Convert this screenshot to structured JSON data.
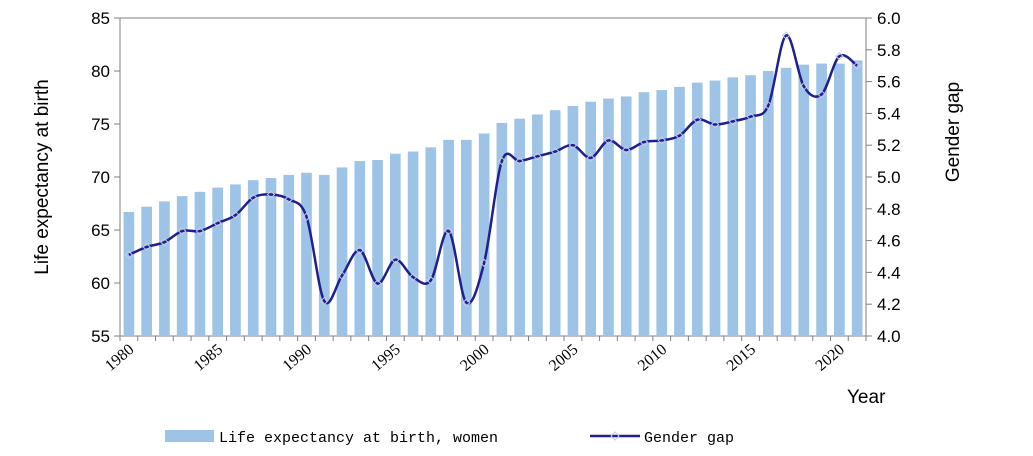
{
  "chart_data": {
    "type": "bar",
    "xlabel": "Year",
    "ylabel": "Life expectancy at birth",
    "y2label": "Gender gap",
    "ylim": [
      55,
      85
    ],
    "y2lim": [
      4.0,
      6.0
    ],
    "yticks": [
      "55",
      "60",
      "65",
      "70",
      "75",
      "80",
      "85"
    ],
    "y2ticks": [
      "4.0",
      "4.2",
      "4.4",
      "4.6",
      "4.8",
      "5.0",
      "5.2",
      "5.4",
      "5.6",
      "5.8",
      "6.0"
    ],
    "xticks": [
      "1980",
      "1985",
      "1990",
      "1995",
      "2000",
      "2005",
      "2010",
      "2015",
      "2020"
    ],
    "grid": false,
    "legend_position": "bottom",
    "x": [
      1980,
      1981,
      1982,
      1983,
      1984,
      1985,
      1986,
      1987,
      1988,
      1989,
      1990,
      1991,
      1992,
      1993,
      1994,
      1995,
      1996,
      1997,
      1998,
      1999,
      2000,
      2001,
      2002,
      2003,
      2004,
      2005,
      2006,
      2007,
      2008,
      2009,
      2010,
      2011,
      2012,
      2013,
      2014,
      2015,
      2016,
      2017,
      2018,
      2019,
      2020,
      2021
    ],
    "series": [
      {
        "name": "Life expectancy at birth, women",
        "kind": "bar",
        "axis": "left",
        "color": "#9DC3E6",
        "values": [
          66.7,
          67.2,
          67.7,
          68.2,
          68.6,
          69.0,
          69.3,
          69.7,
          69.9,
          70.2,
          70.4,
          70.2,
          70.9,
          71.5,
          71.6,
          72.2,
          72.4,
          72.8,
          73.5,
          73.5,
          74.1,
          75.1,
          75.5,
          75.9,
          76.3,
          76.7,
          77.1,
          77.4,
          77.6,
          78.0,
          78.2,
          78.5,
          78.9,
          79.1,
          79.4,
          79.6,
          80.0,
          80.3,
          80.6,
          80.7,
          80.7,
          81.0
        ]
      },
      {
        "name": "Gender gap",
        "kind": "line",
        "axis": "right",
        "color": "#1F1F8F",
        "values": [
          4.51,
          4.56,
          4.59,
          4.66,
          4.66,
          4.71,
          4.76,
          4.87,
          4.89,
          4.86,
          4.75,
          4.22,
          4.38,
          4.54,
          4.33,
          4.48,
          4.37,
          4.35,
          4.66,
          4.21,
          4.46,
          5.1,
          5.1,
          5.13,
          5.16,
          5.2,
          5.12,
          5.23,
          5.17,
          5.22,
          5.23,
          5.26,
          5.36,
          5.33,
          5.35,
          5.38,
          5.45,
          5.89,
          5.57,
          5.52,
          5.76,
          5.7
        ]
      }
    ]
  }
}
